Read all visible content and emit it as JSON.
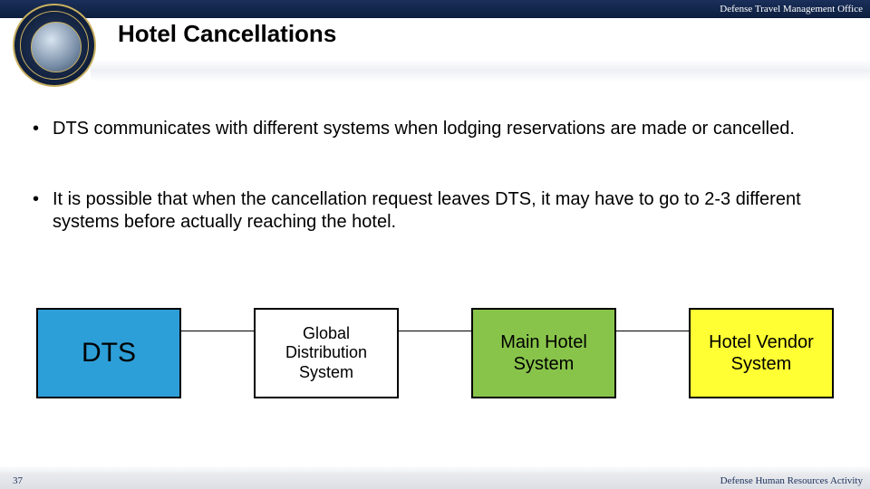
{
  "header": {
    "org": "Defense Travel Management Office"
  },
  "title": "Hotel Cancellations",
  "bullets": [
    "DTS communicates with different systems when lodging reservations are made or cancelled.",
    "It is possible that when the cancellation request leaves DTS, it may have to go to 2-3 different systems before actually reaching the hotel."
  ],
  "diagram": {
    "type": "flowchart",
    "nodes": [
      {
        "label": "DTS",
        "bg": "#2d9fd8",
        "fontsize": 30
      },
      {
        "label": "Global Distribution System",
        "bg": "#ffffff",
        "fontsize": 18
      },
      {
        "label": "Main Hotel System",
        "bg": "#88c44a",
        "fontsize": 20
      },
      {
        "label": "Hotel Vendor System",
        "bg": "#ffff33",
        "fontsize": 20
      }
    ],
    "node_border": "#000000",
    "edge_color": "#000000"
  },
  "footer": {
    "page": "37",
    "org": "Defense Human Resources Activity"
  }
}
